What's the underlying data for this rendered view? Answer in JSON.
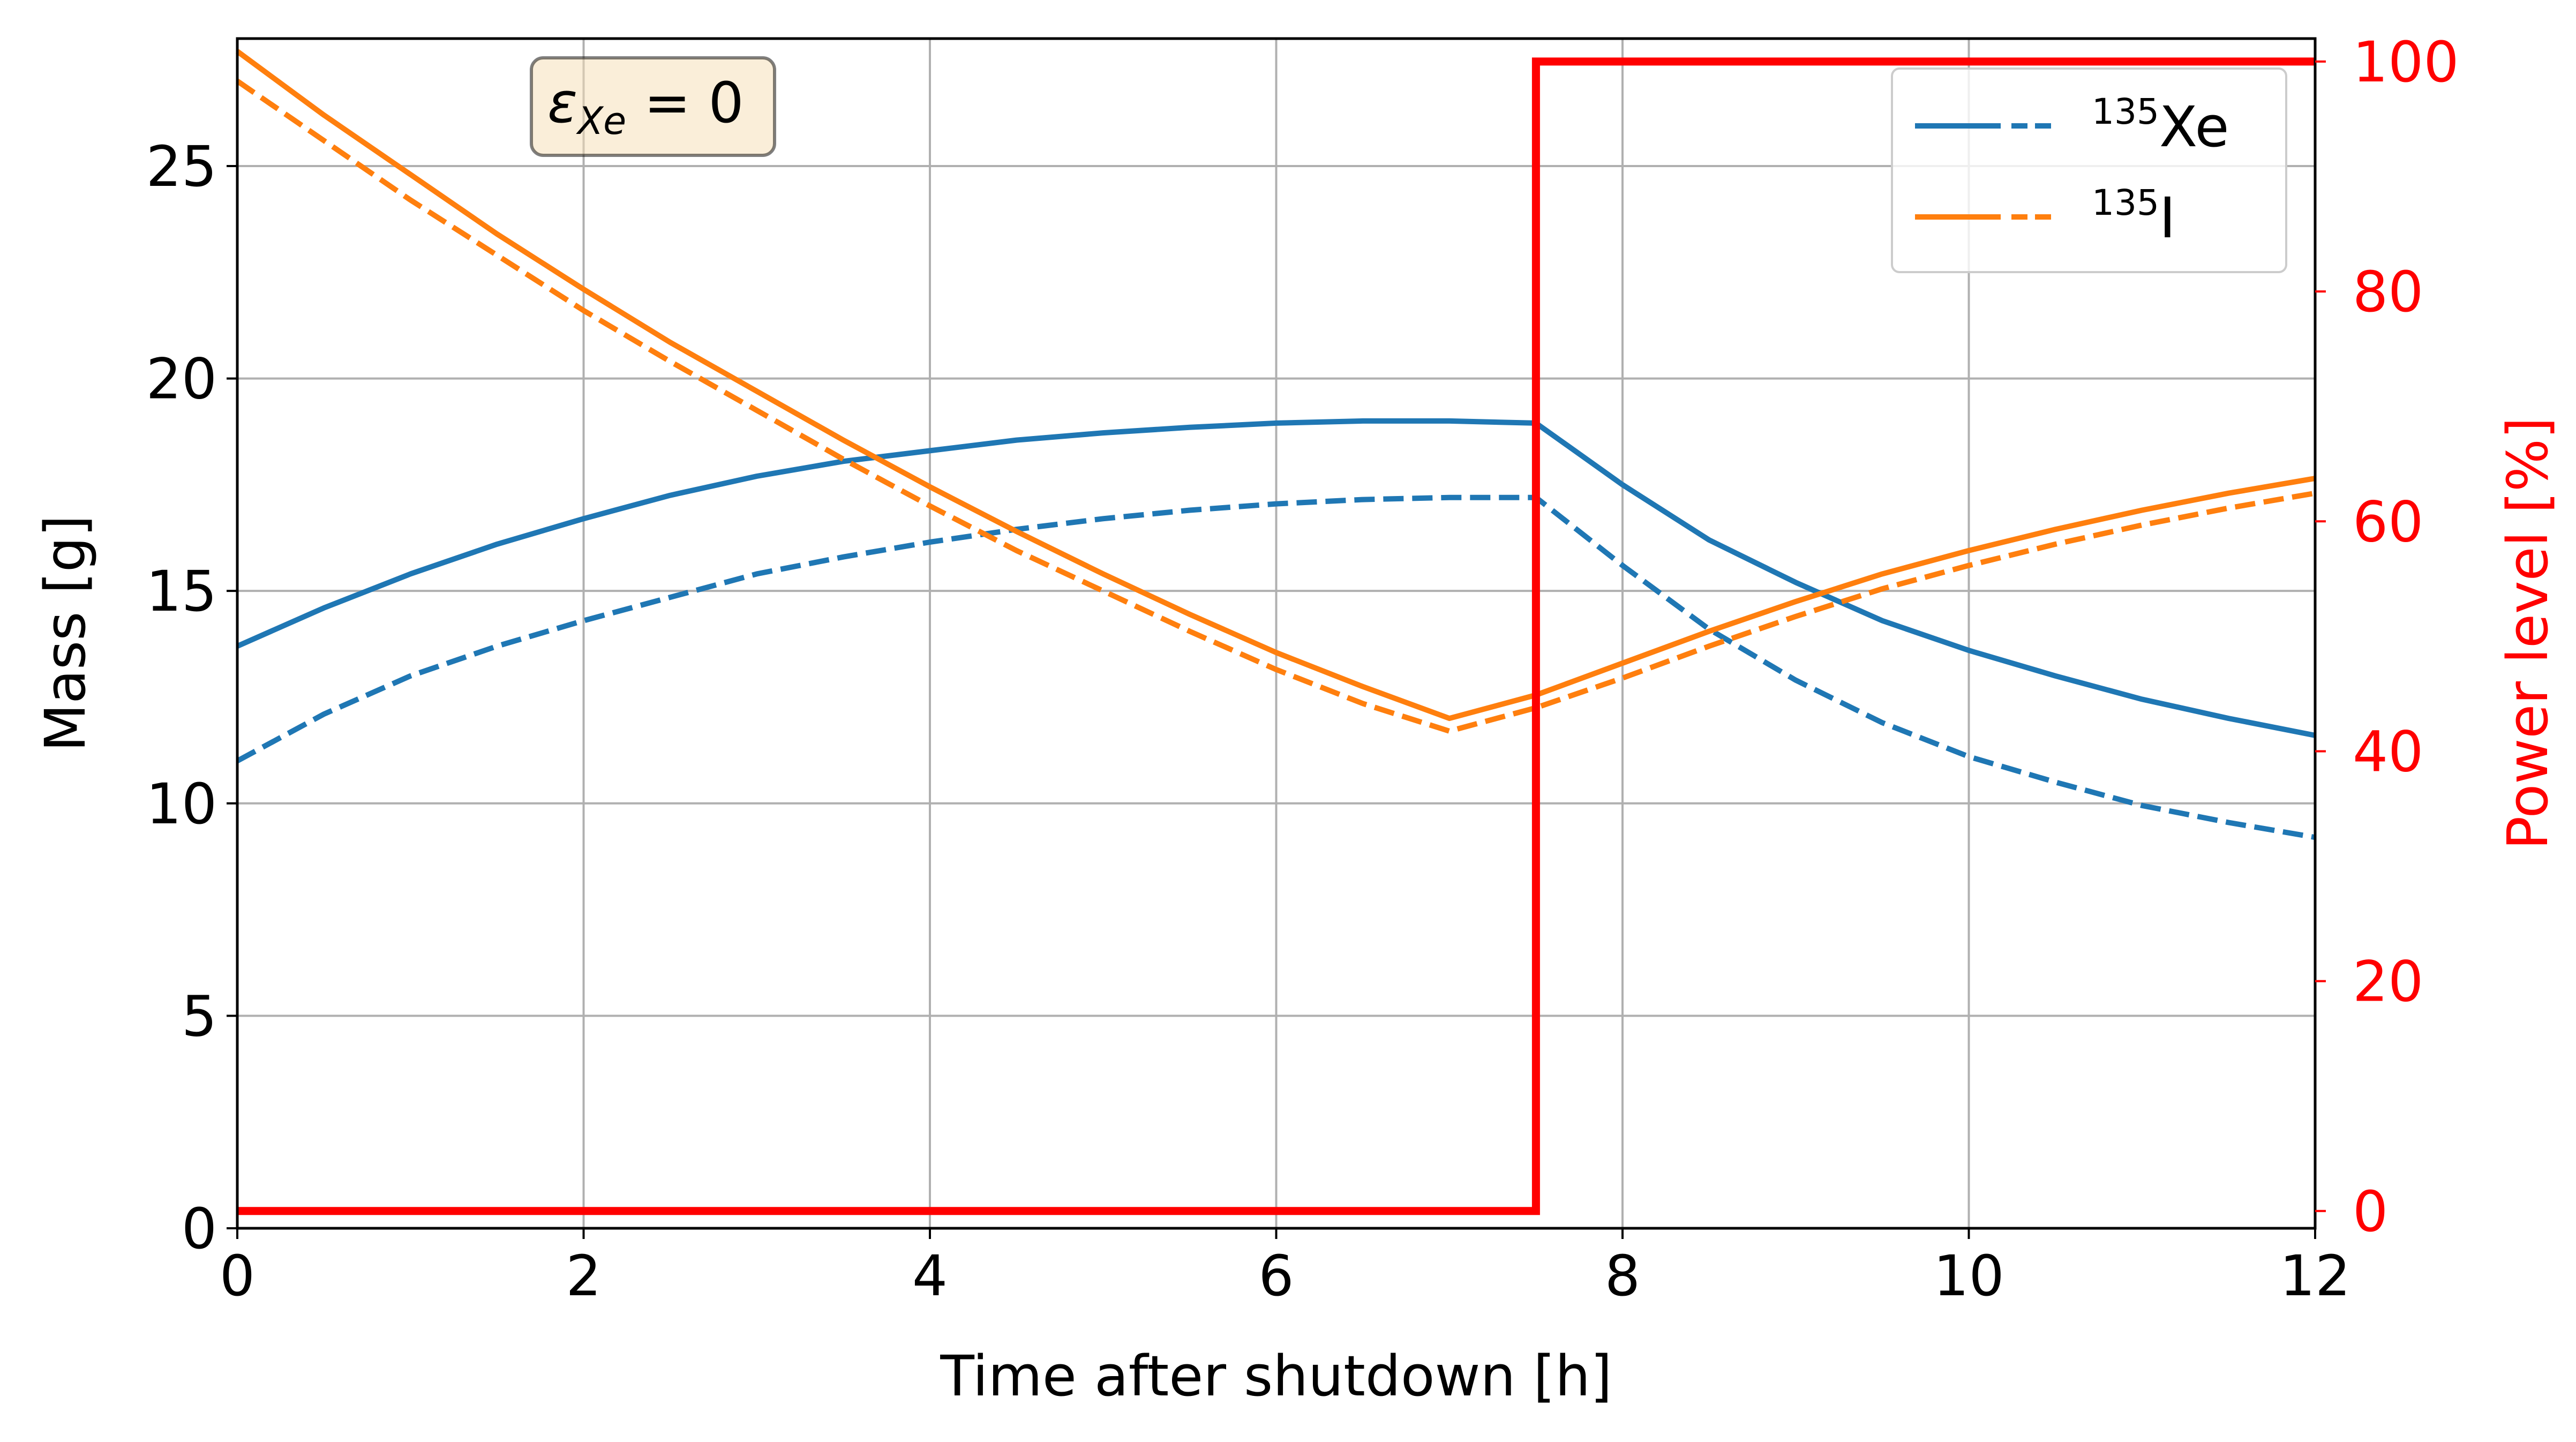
{
  "chart_data": {
    "type": "line",
    "xlabel": "Time after shutdown [h]",
    "ylabel": "Mass [g]",
    "ylabel_right": "Power level [%]",
    "xlim": [
      0,
      12
    ],
    "ylim": [
      0,
      28
    ],
    "ylim_right": [
      -1.5,
      102
    ],
    "xticks": [
      "0",
      "2",
      "4",
      "6",
      "8",
      "10",
      "12"
    ],
    "yticks": [
      "0",
      "5",
      "10",
      "15",
      "20",
      "25"
    ],
    "yticks_right": [
      "0",
      "20",
      "40",
      "60",
      "80",
      "100"
    ],
    "grid": true,
    "legend_position": "top-right",
    "annotation": {
      "symbol": "ε",
      "subscript": "Xe",
      "rest": " = 0"
    },
    "legend": [
      {
        "sup": "135",
        "base": "Xe",
        "color": "#1f77b4"
      },
      {
        "sup": "135",
        "base": "I",
        "color": "#ff7f0e"
      }
    ],
    "x": [
      0,
      0.5,
      1,
      1.5,
      2,
      2.5,
      3,
      3.5,
      4,
      4.5,
      5,
      5.5,
      6,
      6.5,
      7,
      7.5,
      8,
      8.5,
      9,
      9.5,
      10,
      10.5,
      11,
      11.5,
      12
    ],
    "series": [
      {
        "color": "#1f77b4",
        "dash": false,
        "y": [
          13.7,
          14.6,
          15.4,
          16.1,
          16.7,
          17.25,
          17.7,
          18.05,
          18.3,
          18.55,
          18.72,
          18.85,
          18.95,
          19.0,
          19.0,
          18.95,
          17.5,
          16.2,
          15.2,
          14.3,
          13.6,
          13.0,
          12.45,
          12.0,
          11.6
        ]
      },
      {
        "color": "#1f77b4",
        "dash": true,
        "y": [
          11.0,
          12.1,
          13.0,
          13.7,
          14.3,
          14.85,
          15.4,
          15.8,
          16.15,
          16.45,
          16.7,
          16.9,
          17.05,
          17.15,
          17.2,
          17.2,
          15.6,
          14.1,
          12.9,
          11.9,
          11.1,
          10.5,
          9.95,
          9.55,
          9.2
        ]
      },
      {
        "color": "#ff7f0e",
        "dash": false,
        "y": [
          27.7,
          26.2,
          24.8,
          23.4,
          22.1,
          20.85,
          19.7,
          18.55,
          17.45,
          16.4,
          15.4,
          14.45,
          13.55,
          12.75,
          12.0,
          12.55,
          13.3,
          14.05,
          14.75,
          15.4,
          15.95,
          16.45,
          16.9,
          17.3,
          17.65
        ]
      },
      {
        "color": "#ff7f0e",
        "dash": true,
        "y": [
          27.0,
          25.6,
          24.2,
          22.9,
          21.6,
          20.4,
          19.25,
          18.1,
          17.0,
          15.95,
          15.0,
          14.05,
          13.15,
          12.35,
          11.7,
          12.25,
          12.95,
          13.7,
          14.4,
          15.05,
          15.6,
          16.1,
          16.55,
          16.95,
          17.3
        ]
      }
    ],
    "power": {
      "color": "#ff0000",
      "x": [
        0,
        7.5,
        7.5,
        12
      ],
      "y": [
        0,
        0,
        100,
        100
      ]
    }
  }
}
